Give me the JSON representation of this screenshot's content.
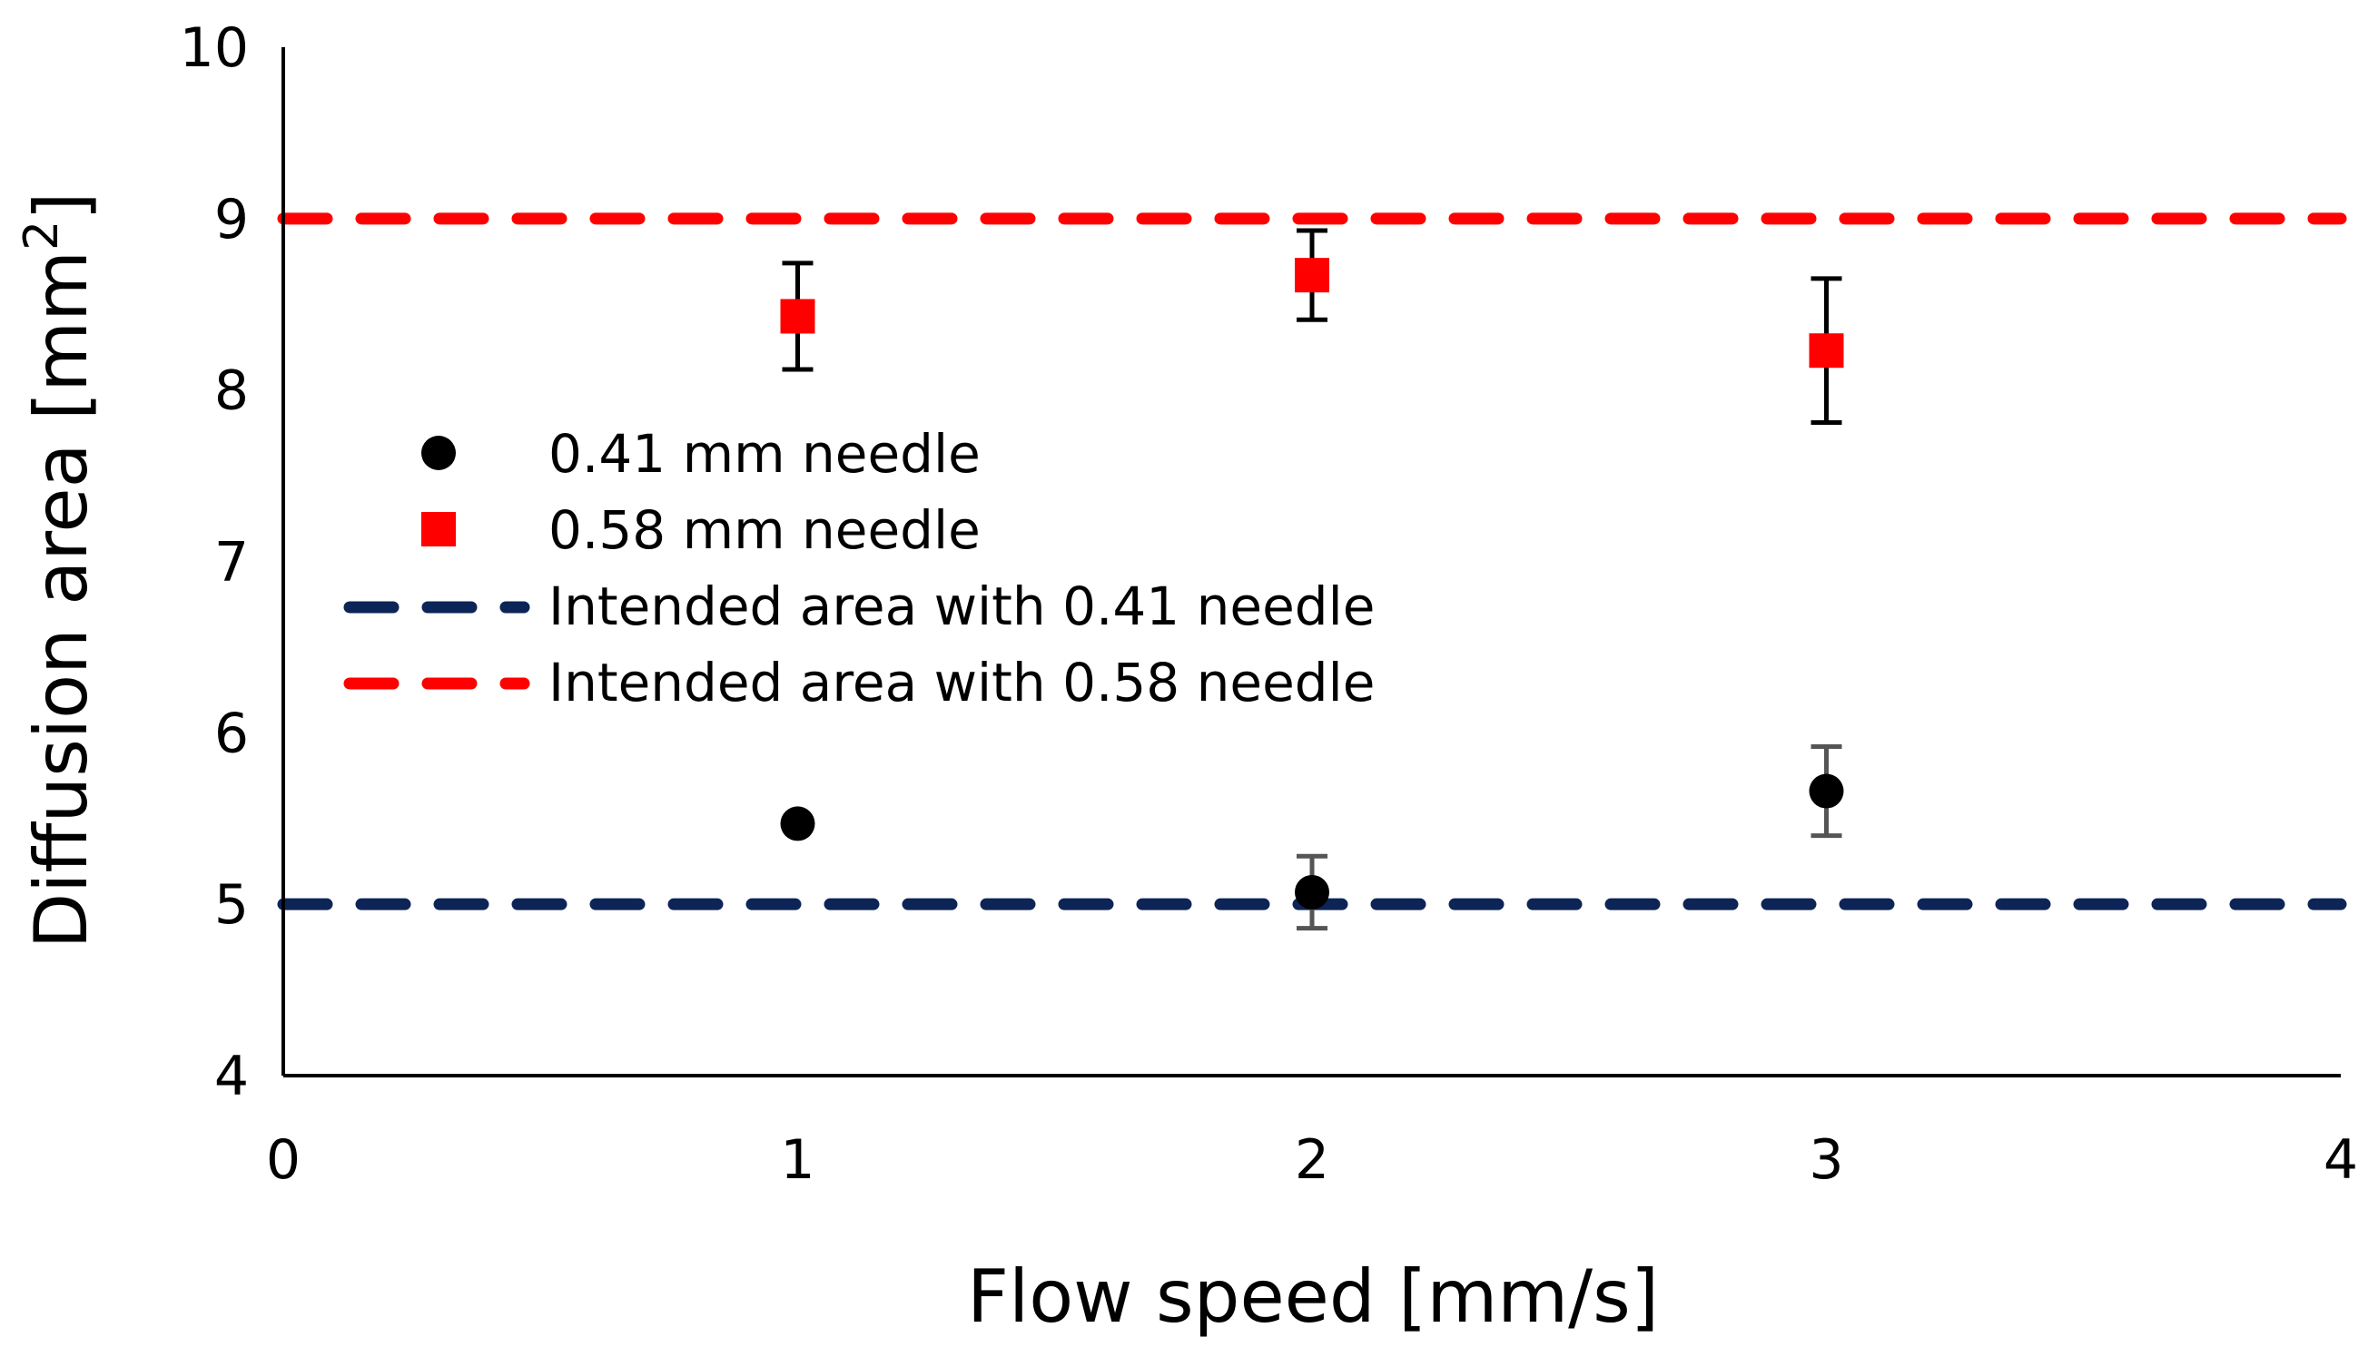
{
  "chart_data": {
    "type": "scatter",
    "xlabel": "Flow speed [mm/s]",
    "ylabel": "Diffusion area [mm",
    "ylabel_sup": "2",
    "ylabel_close": "]",
    "xlim": [
      0,
      4
    ],
    "ylim": [
      4,
      10
    ],
    "x_ticks": [
      0,
      1,
      2,
      3,
      4
    ],
    "y_ticks": [
      4,
      5,
      6,
      7,
      8,
      9,
      10
    ],
    "x_tick_labels": [
      "0",
      "1",
      "2",
      "3",
      "4"
    ],
    "y_tick_labels": [
      "4",
      "5",
      "6",
      "7",
      "8",
      "9",
      "10"
    ],
    "grid": false,
    "legend_position": "center-left",
    "series": [
      {
        "name": "0.41 mm needle",
        "marker": "circle",
        "color": "#000000",
        "error_color": "#555555",
        "x": [
          1,
          2,
          3
        ],
        "y": [
          5.47,
          5.07,
          5.66
        ],
        "error": [
          0,
          0.21,
          0.26
        ]
      },
      {
        "name": "0.58 mm needle",
        "marker": "square",
        "color": "#ff0000",
        "error_color": "#000000",
        "x": [
          1,
          2,
          3
        ],
        "y": [
          8.43,
          8.67,
          8.23
        ],
        "error": [
          0.31,
          0.26,
          0.42
        ]
      }
    ],
    "reference_lines": [
      {
        "name": "Intended area with 0.41 needle",
        "y": 5,
        "color": "#0d2457",
        "style": "dashed"
      },
      {
        "name": "Intended area with 0.58 needle",
        "y": 9,
        "color": "#ff0000",
        "style": "dashed"
      }
    ]
  }
}
